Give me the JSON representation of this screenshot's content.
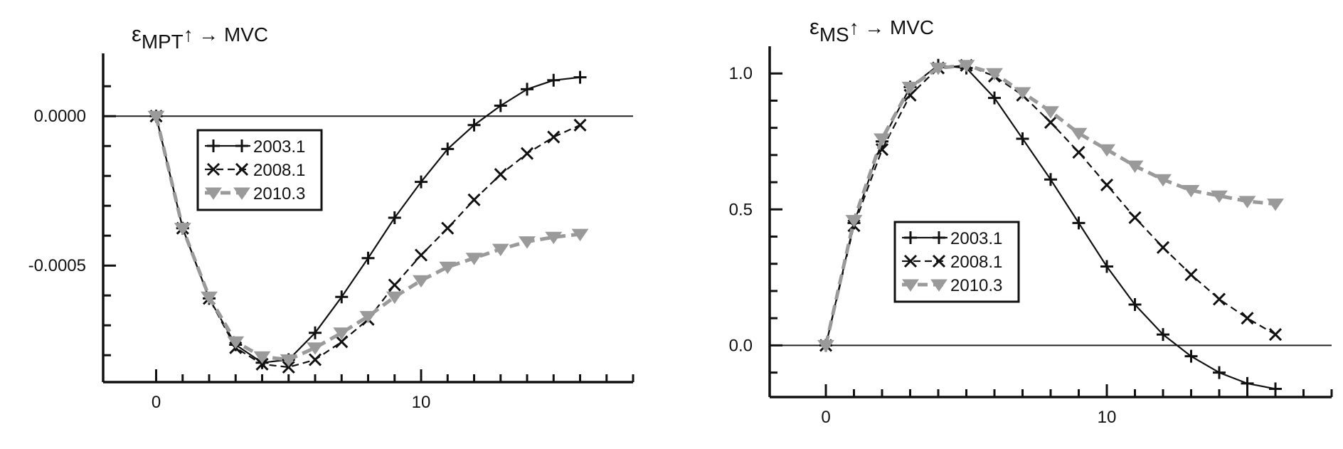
{
  "chart_data": [
    {
      "type": "line",
      "title_main": "ε",
      "title_sub": "MPT",
      "title_rest": "↑ → MVC",
      "xlim": [
        -2,
        18
      ],
      "ylim": [
        -0.00089,
        0.00021
      ],
      "x_ticks": [
        0,
        10
      ],
      "x_ticks_minor": [
        0,
        1,
        2,
        3,
        4,
        5,
        6,
        7,
        8,
        9,
        10,
        11,
        12,
        13,
        14,
        15,
        16,
        17,
        18
      ],
      "y_ticks": [
        0.0,
        -0.0005
      ],
      "y_tick_labels": [
        "0.0000",
        "-0.0005"
      ],
      "y_ticks_minor": [
        0.0001,
        0.0,
        -0.0001,
        -0.0002,
        -0.0003,
        -0.0004,
        -0.0005,
        -0.0006,
        -0.0007,
        -0.0008
      ],
      "zero_line": 0.0,
      "legend_position": "upper-left",
      "series": [
        {
          "name": "2003.1",
          "x": [
            0,
            1,
            2,
            3,
            4,
            5,
            6,
            7,
            8,
            9,
            10,
            11,
            12,
            13,
            14,
            15,
            16
          ],
          "y": [
            0.0,
            -0.000375,
            -0.00061,
            -0.000765,
            -0.000825,
            -0.000815,
            -0.000725,
            -0.000605,
            -0.000475,
            -0.00034,
            -0.00022,
            -0.00011,
            -3e-05,
            3.5e-05,
            9e-05,
            0.00012,
            0.00013
          ]
        },
        {
          "name": "2008.1",
          "x": [
            0,
            1,
            2,
            3,
            4,
            5,
            6,
            7,
            8,
            9,
            10,
            11,
            12,
            13,
            14,
            15,
            16
          ],
          "y": [
            0.0,
            -0.000375,
            -0.00061,
            -0.000775,
            -0.00083,
            -0.00084,
            -0.000815,
            -0.000755,
            -0.00068,
            -0.000565,
            -0.000465,
            -0.000375,
            -0.00028,
            -0.000195,
            -0.000125,
            -7e-05,
            -3e-05
          ]
        },
        {
          "name": "2010.3",
          "x": [
            0,
            1,
            2,
            3,
            4,
            5,
            6,
            7,
            8,
            9,
            10,
            11,
            12,
            13,
            14,
            15,
            16
          ],
          "y": [
            0.0,
            -0.000375,
            -0.000605,
            -0.000755,
            -0.000805,
            -0.000815,
            -0.000775,
            -0.000725,
            -0.00067,
            -0.000605,
            -0.00055,
            -0.000505,
            -0.000475,
            -0.000445,
            -0.00042,
            -0.000405,
            -0.000395
          ]
        }
      ]
    },
    {
      "type": "line",
      "title_main": "ε",
      "title_sub": "MS",
      "title_rest": "↑ → MVC",
      "xlim": [
        -2,
        18
      ],
      "ylim": [
        -0.19,
        1.1
      ],
      "x_ticks": [
        0,
        10
      ],
      "x_ticks_minor": [
        0,
        1,
        2,
        3,
        4,
        5,
        6,
        7,
        8,
        9,
        10,
        11,
        12,
        13,
        14,
        15,
        16,
        17,
        18
      ],
      "y_ticks": [
        1.0,
        0.5,
        0.0
      ],
      "y_tick_labels": [
        "1.0",
        "0.5",
        "0.0"
      ],
      "y_ticks_minor": [
        -0.1,
        0.0,
        0.1,
        0.2,
        0.3,
        0.4,
        0.5,
        0.6,
        0.7,
        0.8,
        0.9,
        1.0
      ],
      "zero_line": 0.0,
      "legend_position": "center-left",
      "series": [
        {
          "name": "2003.1",
          "x": [
            0,
            1,
            2,
            3,
            4,
            5,
            6,
            7,
            8,
            9,
            10,
            11,
            12,
            13,
            14,
            15,
            16
          ],
          "y": [
            0.0,
            0.45,
            0.75,
            0.95,
            1.03,
            1.02,
            0.91,
            0.76,
            0.61,
            0.45,
            0.29,
            0.15,
            0.04,
            -0.04,
            -0.1,
            -0.14,
            -0.16
          ]
        },
        {
          "name": "2008.1",
          "x": [
            0,
            1,
            2,
            3,
            4,
            5,
            6,
            7,
            8,
            9,
            10,
            11,
            12,
            13,
            14,
            15,
            16
          ],
          "y": [
            0.0,
            0.44,
            0.72,
            0.92,
            1.02,
            1.03,
            0.99,
            0.92,
            0.82,
            0.71,
            0.59,
            0.47,
            0.36,
            0.26,
            0.17,
            0.1,
            0.04
          ]
        },
        {
          "name": "2010.3",
          "x": [
            0,
            1,
            2,
            3,
            4,
            5,
            6,
            7,
            8,
            9,
            10,
            11,
            12,
            13,
            14,
            15,
            16
          ],
          "y": [
            0.0,
            0.46,
            0.76,
            0.95,
            1.02,
            1.03,
            1.0,
            0.93,
            0.86,
            0.78,
            0.72,
            0.66,
            0.61,
            0.57,
            0.55,
            0.53,
            0.52
          ]
        }
      ]
    }
  ]
}
